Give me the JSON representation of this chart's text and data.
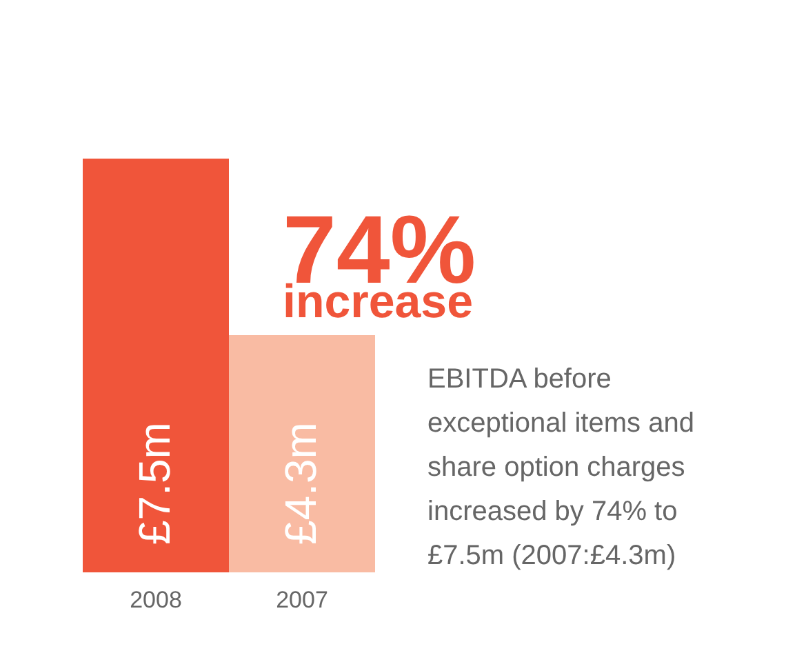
{
  "chart_data": {
    "type": "bar",
    "categories": [
      "2008",
      "2007"
    ],
    "values": [
      7.5,
      4.3
    ],
    "colors": [
      "#f0553a",
      "#f9bba3"
    ],
    "value_labels": [
      "£7.5m",
      "£4.3m"
    ],
    "annotations": [
      "74%",
      "increase",
      "EBITDA before exceptional items and share option charges increased by 74% to £7.5m (2007:£4.3m)"
    ],
    "grid": false
  }
}
